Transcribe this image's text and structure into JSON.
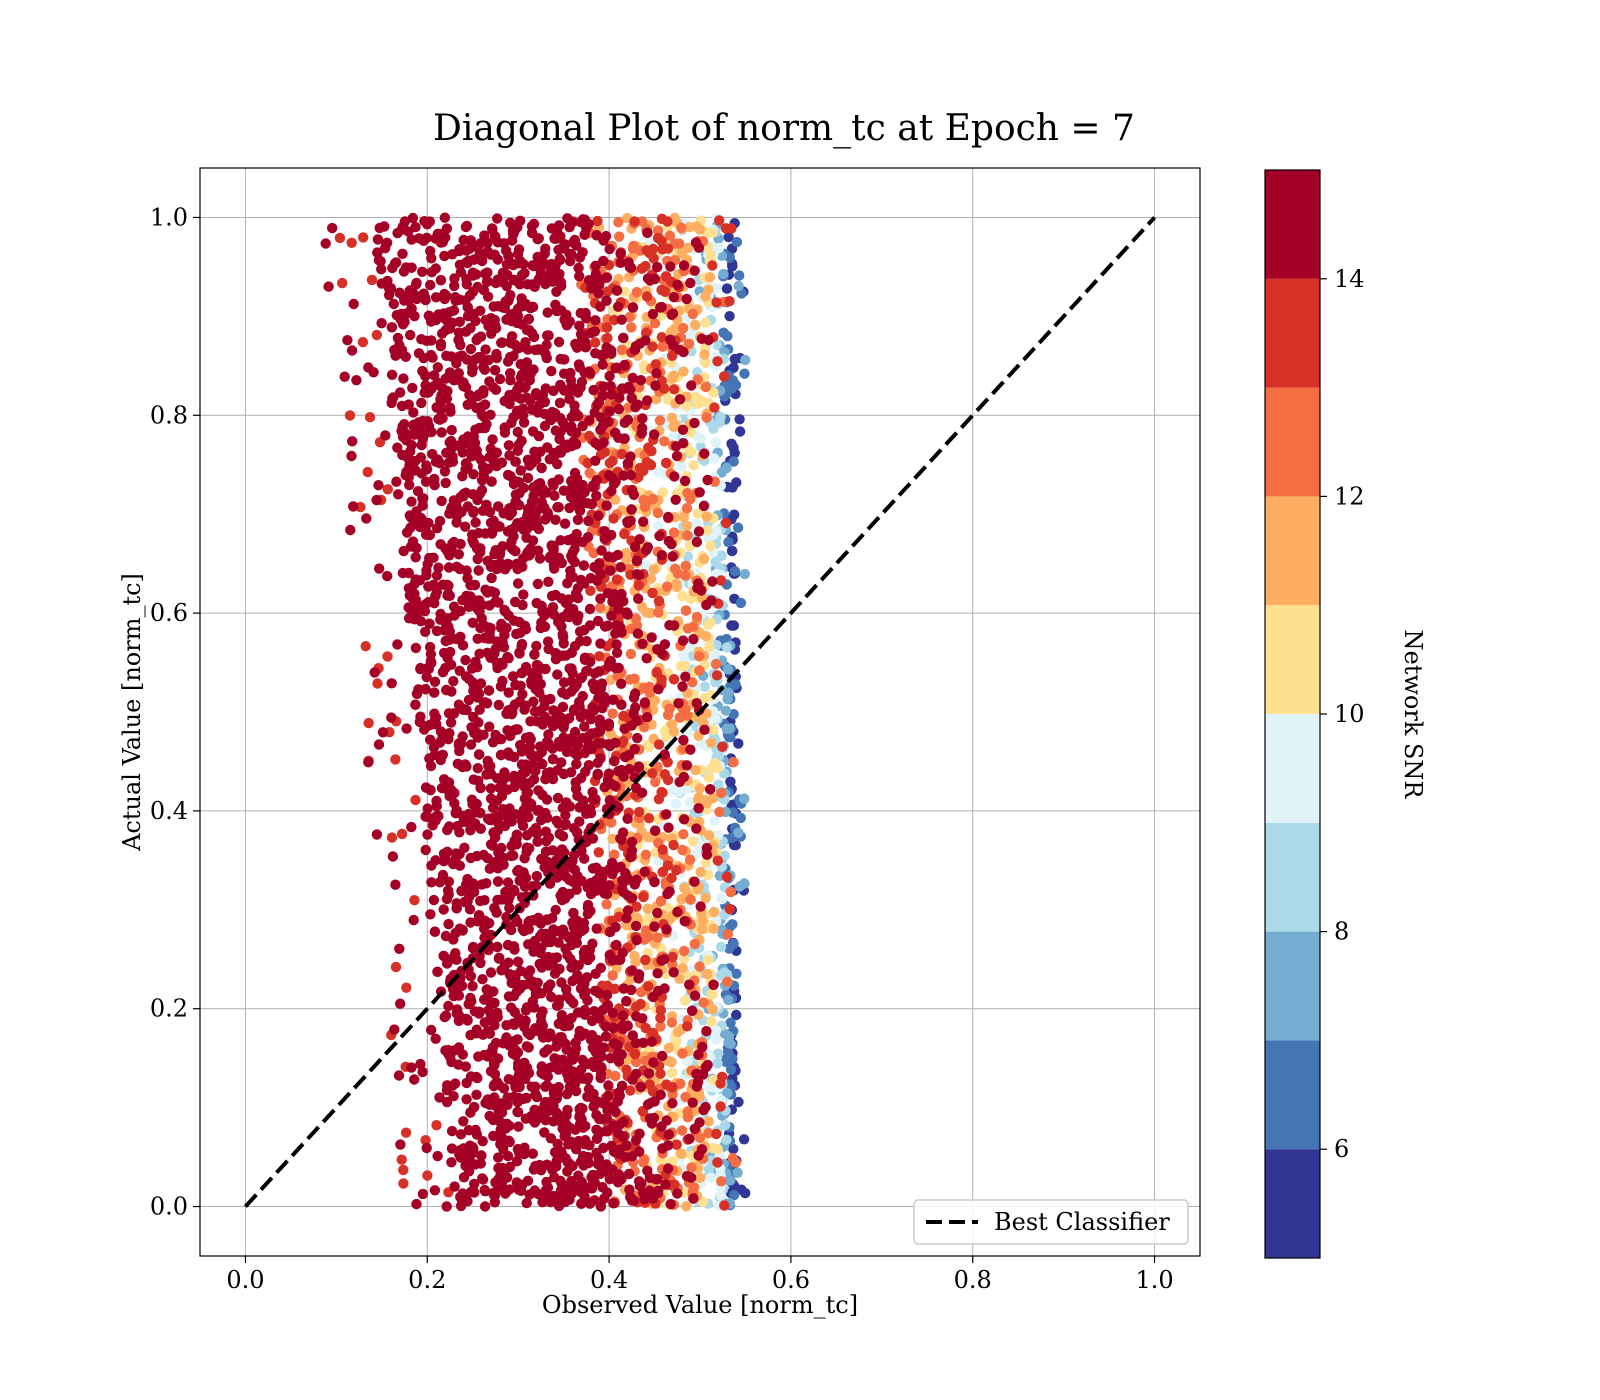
{
  "chart_data": {
    "type": "scatter",
    "title": "Diagonal Plot of norm_tc at Epoch = 7",
    "xlabel": "Observed Value [norm_tc]",
    "ylabel": "Actual Value [norm_tc]",
    "xlim": [
      -0.05,
      1.05
    ],
    "ylim": [
      -0.05,
      1.05
    ],
    "xticks": [
      0.0,
      0.2,
      0.4,
      0.6,
      0.8,
      1.0
    ],
    "yticks": [
      0.0,
      0.2,
      0.4,
      0.6,
      0.8,
      1.0
    ],
    "xtick_labels": [
      "0.0",
      "0.2",
      "0.4",
      "0.6",
      "0.8",
      "1.0"
    ],
    "ytick_labels": [
      "0.0",
      "0.2",
      "0.4",
      "0.6",
      "0.8",
      "1.0"
    ],
    "grid": true,
    "legend": {
      "position": "lower-right",
      "entries": [
        "Best Classifier"
      ]
    },
    "reference_line": {
      "name": "Best Classifier",
      "style": "dashed",
      "color": "#000000",
      "x": [
        0.0,
        1.0
      ],
      "y": [
        0.0,
        1.0
      ]
    },
    "scatter_description": {
      "actual_range": [
        0.0,
        1.0
      ],
      "observed_left_edge": {
        "at_actual_0": 0.23,
        "at_actual_1": 0.14
      },
      "observed_right_edge": 0.54,
      "color_trend": "SNR decreases with observed value: high SNR (~14-15) at left, low SNR (~5-8) at right edge"
    },
    "colorbar": {
      "label": "Network SNR",
      "range": [
        5,
        15
      ],
      "ticks": [
        6,
        8,
        10,
        12,
        14
      ],
      "tick_labels": [
        "6",
        "8",
        "10",
        "12",
        "14"
      ],
      "levels": [
        {
          "from": 5,
          "to": 6,
          "color": "#313695"
        },
        {
          "from": 6,
          "to": 7,
          "color": "#4575b4"
        },
        {
          "from": 7,
          "to": 8,
          "color": "#74add1"
        },
        {
          "from": 8,
          "to": 9,
          "color": "#abd9e9"
        },
        {
          "from": 9,
          "to": 10,
          "color": "#e0f3f8"
        },
        {
          "from": 10,
          "to": 11,
          "color": "#fee090"
        },
        {
          "from": 11,
          "to": 12,
          "color": "#fdae61"
        },
        {
          "from": 12,
          "to": 13,
          "color": "#f46d43"
        },
        {
          "from": 13,
          "to": 14,
          "color": "#d73027"
        },
        {
          "from": 14,
          "to": 15,
          "color": "#a50026"
        }
      ]
    }
  }
}
